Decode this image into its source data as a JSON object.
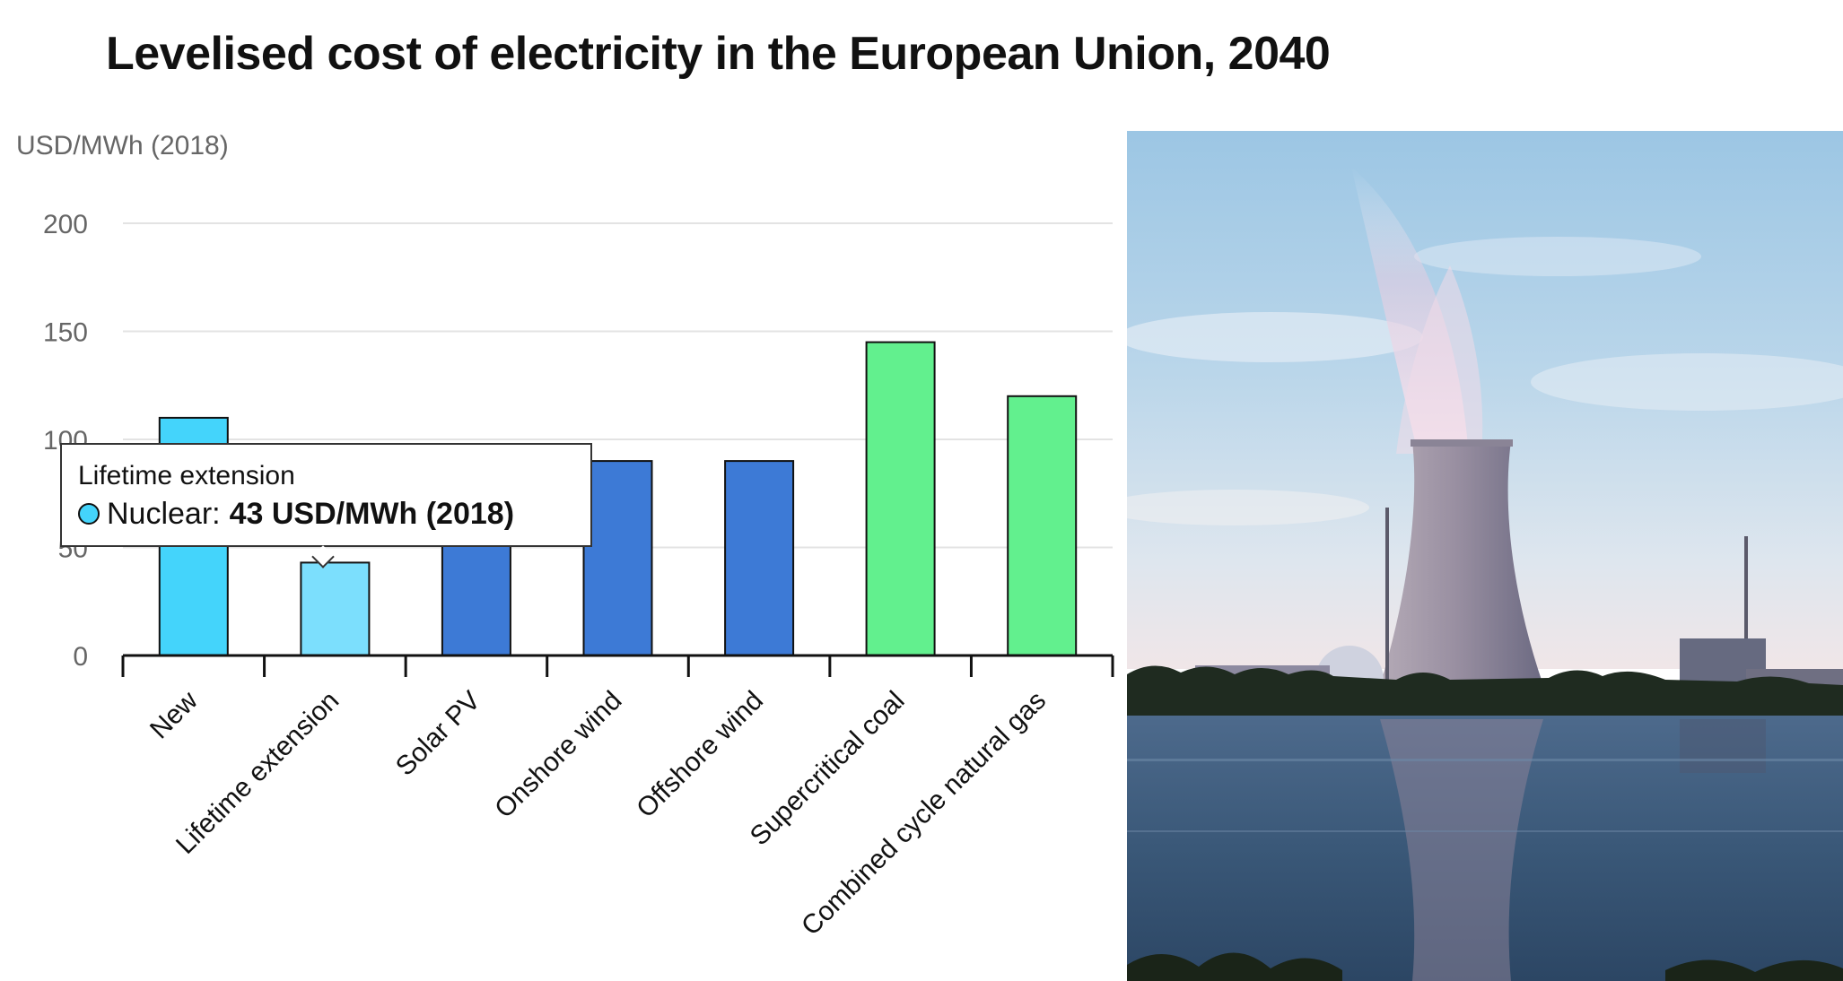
{
  "chart_data": {
    "type": "bar",
    "title": "Levelised cost of electricity in the European Union, 2040",
    "ylabel": "USD/MWh (2018)",
    "xlabel": "",
    "ylim": [
      0,
      200
    ],
    "yticks": [
      0,
      50,
      100,
      150,
      200
    ],
    "grid": true,
    "categories": [
      "New",
      "Lifetime extension",
      "Solar PV",
      "Onshore wind",
      "Offshore wind",
      "Supercritical coal",
      "Combined cycle natural gas"
    ],
    "values": [
      110,
      43,
      90,
      90,
      90,
      145,
      120
    ],
    "colors": [
      "#44d4fb",
      "#7cdffd",
      "#3d7ad6",
      "#3d7ad6",
      "#3d7ad6",
      "#62f08e",
      "#62f08e"
    ],
    "tooltip": {
      "category": "Lifetime extension",
      "series": "Nuclear:",
      "value_text": "43 USD/MWh (2018)",
      "color": "#44d4fb"
    }
  }
}
